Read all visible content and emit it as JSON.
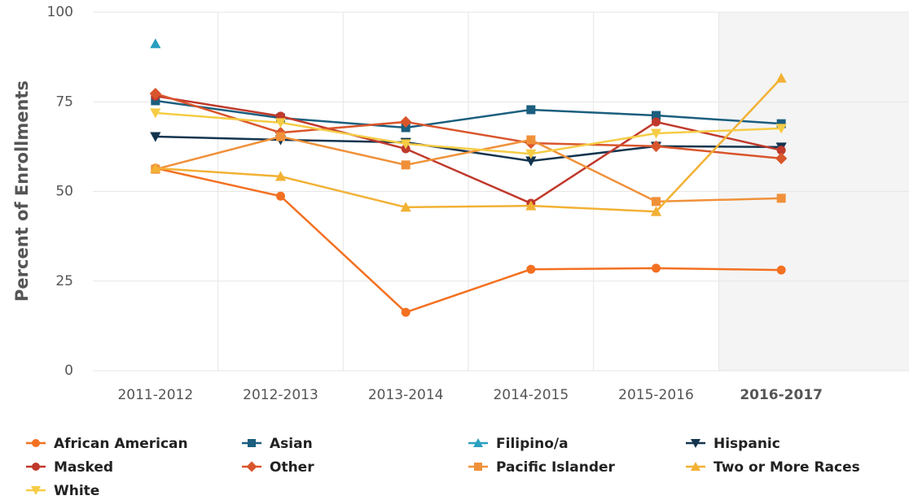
{
  "chart_data": {
    "type": "line",
    "y_label": "Percent of Enrollments",
    "categories": [
      "2011-2012",
      "2012-2013",
      "2013-2014",
      "2014-2015",
      "2015-2016",
      "2016-2017"
    ],
    "highlight": "2016-2017",
    "ylim": [
      0,
      100
    ],
    "yticks": [
      0,
      25,
      50,
      75,
      100
    ],
    "grid": true,
    "legend": "bottom",
    "series": [
      {
        "name": "African American",
        "color": "#f37021",
        "marker": "circle",
        "values": [
          56.5,
          48.7,
          16.3,
          28.3,
          28.6,
          28.1
        ]
      },
      {
        "name": "Asian",
        "color": "#1b5e7e",
        "marker": "square",
        "values": [
          75.3,
          70.5,
          67.8,
          72.8,
          71.2,
          68.9
        ]
      },
      {
        "name": "Filipino/a",
        "color": "#2aa0c0",
        "marker": "triangle",
        "values": [
          91.2,
          null,
          null,
          null,
          null,
          null
        ]
      },
      {
        "name": "Hispanic",
        "color": "#13344e",
        "marker": "triangle-down",
        "values": [
          65.3,
          64.4,
          63.7,
          58.5,
          62.6,
          62.4
        ]
      },
      {
        "name": "Masked",
        "color": "#c0392b",
        "marker": "circle",
        "values": [
          76.6,
          71.0,
          61.9,
          46.7,
          69.4,
          61.5
        ]
      },
      {
        "name": "Other",
        "color": "#d9552b",
        "marker": "diamond",
        "values": [
          77.3,
          66.4,
          69.4,
          63.5,
          62.6,
          59.2
        ]
      },
      {
        "name": "Pacific Islander",
        "color": "#f0913a",
        "marker": "square",
        "values": [
          56.2,
          65.3,
          57.4,
          64.4,
          47.2,
          48.1
        ]
      },
      {
        "name": "Two or More Races",
        "color": "#f2b134",
        "marker": "triangle",
        "values": [
          56.5,
          54.2,
          45.6,
          46.0,
          44.4,
          81.6
        ]
      },
      {
        "name": "White",
        "color": "#f5cc45",
        "marker": "triangle-down",
        "values": [
          71.9,
          69.2,
          63.3,
          60.5,
          66.2,
          67.6
        ]
      }
    ]
  }
}
